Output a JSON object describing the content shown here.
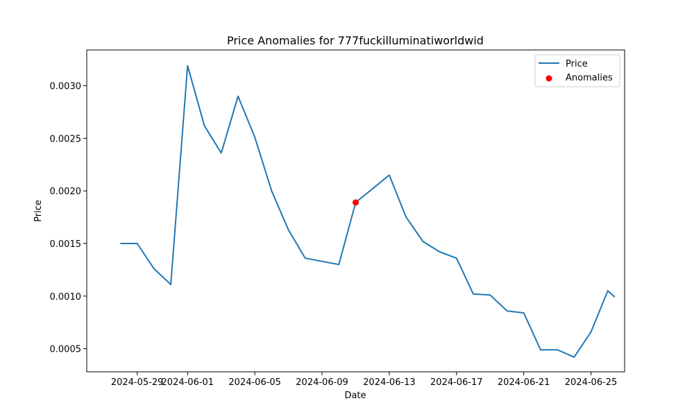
{
  "chart_data": {
    "type": "line",
    "title": "Price Anomalies for 777fuckilluminatiworldwid",
    "xlabel": "Date",
    "ylabel": "Price",
    "xlim": [
      "2024-05-26",
      "2024-06-27"
    ],
    "ylim": [
      0.00028,
      0.00334
    ],
    "x_ticks": [
      "2024-05-29",
      "2024-06-01",
      "2024-06-05",
      "2024-06-09",
      "2024-06-13",
      "2024-06-17",
      "2024-06-21",
      "2024-06-25"
    ],
    "y_ticks": [
      0.0005,
      0.001,
      0.0015,
      0.002,
      0.0025,
      0.003
    ],
    "y_tick_labels": [
      "0.0005",
      "0.0010",
      "0.0015",
      "0.0020",
      "0.0025",
      "0.0030"
    ],
    "grid": false,
    "legend_position": "top-right",
    "series": [
      {
        "name": "Price",
        "color": "#1f77b4",
        "points": [
          [
            "2024-05-28",
            0.0015
          ],
          [
            "2024-05-29",
            0.0015
          ],
          [
            "2024-05-30",
            0.00126
          ],
          [
            "2024-05-31",
            0.00111
          ],
          [
            "2024-06-01",
            0.00319
          ],
          [
            "2024-06-02",
            0.00262
          ],
          [
            "2024-06-03",
            0.00236
          ],
          [
            "2024-06-04",
            0.0029
          ],
          [
            "2024-06-05",
            0.00251
          ],
          [
            "2024-06-06",
            0.002
          ],
          [
            "2024-06-07",
            0.00163
          ],
          [
            "2024-06-08",
            0.00136
          ],
          [
            "2024-06-10",
            0.0013
          ],
          [
            "2024-06-11",
            0.00189
          ],
          [
            "2024-06-12",
            0.00202
          ],
          [
            "2024-06-13",
            0.00215
          ],
          [
            "2024-06-14",
            0.00175
          ],
          [
            "2024-06-15",
            0.00152
          ],
          [
            "2024-06-16",
            0.00142
          ],
          [
            "2024-06-17",
            0.00136
          ],
          [
            "2024-06-18",
            0.00102
          ],
          [
            "2024-06-19",
            0.00101
          ],
          [
            "2024-06-20",
            0.00086
          ],
          [
            "2024-06-21",
            0.00084
          ],
          [
            "2024-06-22",
            0.00049
          ],
          [
            "2024-06-23",
            0.00049
          ],
          [
            "2024-06-24",
            0.00042
          ],
          [
            "2024-06-25",
            0.00066
          ],
          [
            "2024-06-26",
            0.00105
          ],
          [
            "2024-06-26T10:00",
            0.00099
          ]
        ]
      },
      {
        "name": "Anomalies",
        "type": "scatter",
        "color": "#ff0000",
        "points": [
          [
            "2024-06-11",
            0.00189
          ]
        ]
      }
    ]
  }
}
